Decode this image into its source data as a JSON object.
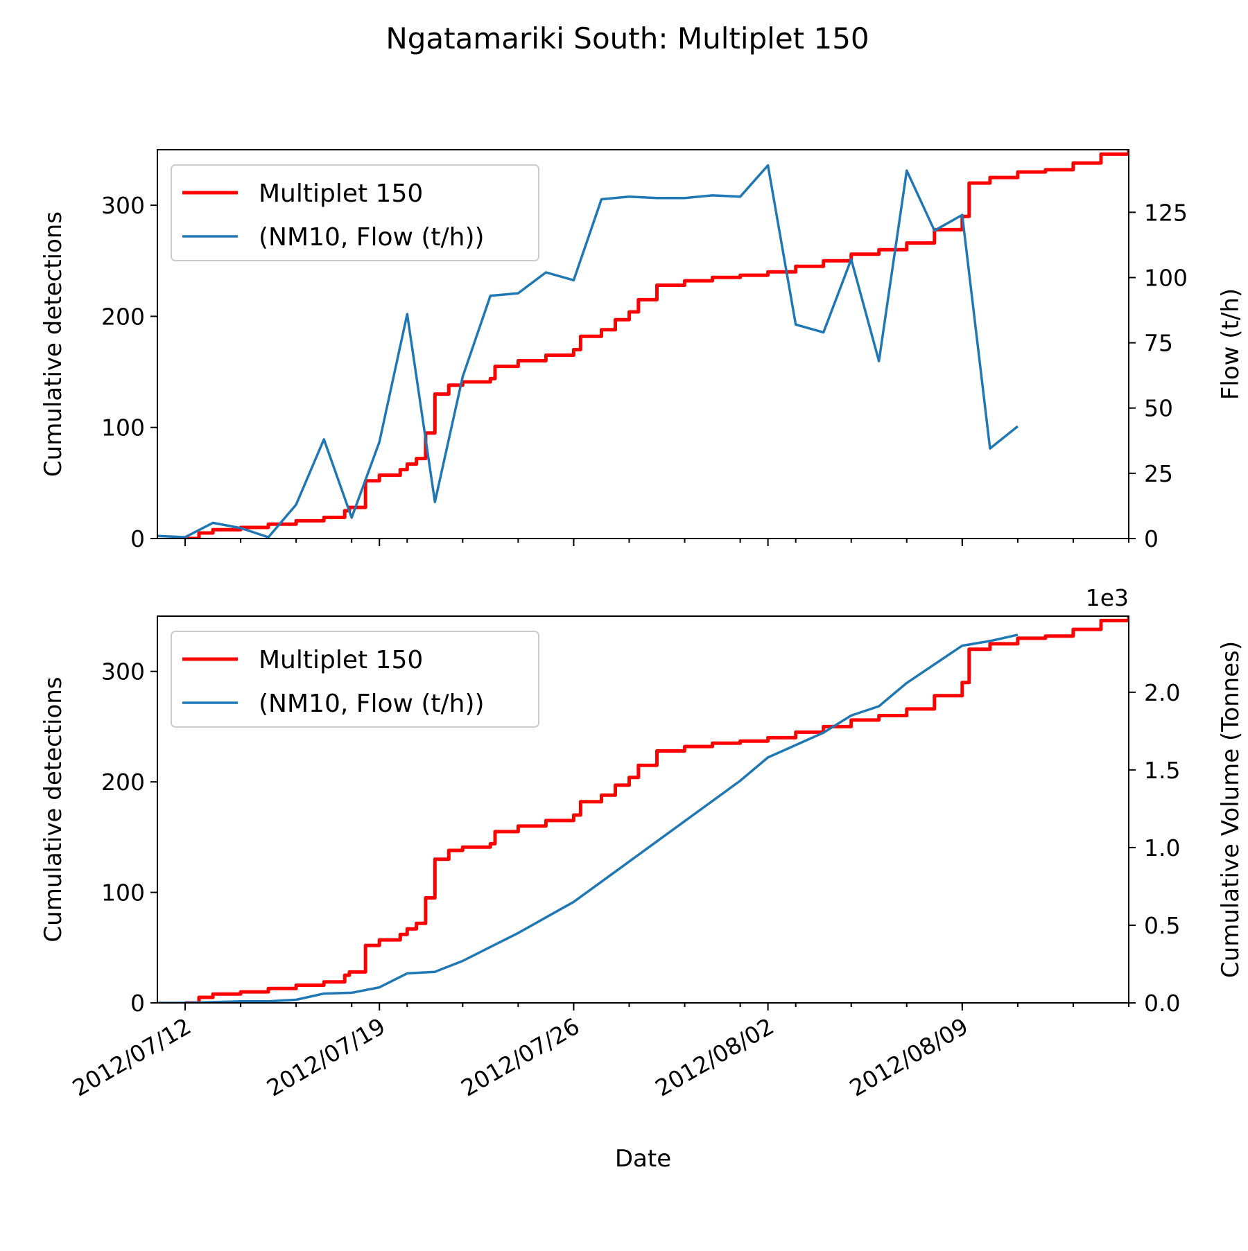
{
  "figure": {
    "title": "Ngatamariki South: Multiplet 150"
  },
  "colors": {
    "detections": "#ff0000",
    "flow": "#1f77b4",
    "axes": "#000000",
    "legend_border": "#cccccc"
  },
  "chart_data": [
    {
      "type": "line",
      "panel": "top",
      "x_axis": {
        "type": "date",
        "range": [
          "2012-07-11",
          "2012-08-15"
        ],
        "major_ticks": [
          "2012-07-12",
          "2012-07-19",
          "2012-07-26",
          "2012-08-02",
          "2012-08-09"
        ],
        "minor_tick_interval_days": 2,
        "tick_labels_shown": false
      },
      "left_axis": {
        "label": "Cumulative detections",
        "range": [
          0,
          350
        ],
        "ticks": [
          0,
          100,
          200,
          300
        ],
        "tick_labels": [
          "0",
          "100",
          "200",
          "300"
        ]
      },
      "right_axis": {
        "label": "Flow (t/h)",
        "range": [
          0,
          149
        ],
        "ticks": [
          0,
          25,
          50,
          75,
          100,
          125
        ],
        "tick_labels": [
          "0",
          "25",
          "50",
          "75",
          "100",
          "125"
        ]
      },
      "legend": {
        "placement": "upper-left",
        "entries": [
          "Multiplet 150",
          "(NM10, Flow (t/h))"
        ]
      },
      "grid": false,
      "series": [
        {
          "name": "Multiplet 150",
          "axis": "left",
          "style": "step",
          "x": [
            "2012-07-12",
            "2012-07-12T12:00",
            "2012-07-13",
            "2012-07-14",
            "2012-07-15",
            "2012-07-16",
            "2012-07-17",
            "2012-07-17T18:00",
            "2012-07-17T22:00",
            "2012-07-18T12:00",
            "2012-07-19",
            "2012-07-19T18:00",
            "2012-07-20",
            "2012-07-20T08:00",
            "2012-07-20T16:00",
            "2012-07-21",
            "2012-07-21T12:00",
            "2012-07-22",
            "2012-07-23",
            "2012-07-23T04:00",
            "2012-07-24",
            "2012-07-25",
            "2012-07-26",
            "2012-07-26T06:00",
            "2012-07-27",
            "2012-07-27T12:00",
            "2012-07-28",
            "2012-07-28T08:00",
            "2012-07-29",
            "2012-07-30",
            "2012-07-31",
            "2012-08-01",
            "2012-08-02",
            "2012-08-03",
            "2012-08-04",
            "2012-08-05",
            "2012-08-06",
            "2012-08-07",
            "2012-08-08",
            "2012-08-09",
            "2012-08-09T06:00",
            "2012-08-10",
            "2012-08-11",
            "2012-08-12",
            "2012-08-13",
            "2012-08-14",
            "2012-08-15"
          ],
          "y": [
            0,
            5,
            8,
            10,
            13,
            16,
            19,
            25,
            28,
            52,
            57,
            62,
            67,
            72,
            95,
            130,
            138,
            141,
            144,
            155,
            160,
            165,
            170,
            182,
            188,
            197,
            204,
            215,
            228,
            232,
            235,
            237,
            240,
            245,
            250,
            256,
            260,
            266,
            278,
            290,
            320,
            325,
            330,
            332,
            338,
            346,
            350
          ]
        },
        {
          "name": "(NM10, Flow (t/h))",
          "axis": "right",
          "style": "line",
          "x": [
            "2012-07-11",
            "2012-07-12",
            "2012-07-13",
            "2012-07-14",
            "2012-07-15",
            "2012-07-16",
            "2012-07-17",
            "2012-07-18",
            "2012-07-19",
            "2012-07-20",
            "2012-07-21",
            "2012-07-22",
            "2012-07-23",
            "2012-07-24",
            "2012-07-25",
            "2012-07-26",
            "2012-07-27",
            "2012-07-28",
            "2012-07-29",
            "2012-07-30",
            "2012-07-31",
            "2012-08-01",
            "2012-08-02",
            "2012-08-03",
            "2012-08-04",
            "2012-08-05",
            "2012-08-06",
            "2012-08-07",
            "2012-08-08",
            "2012-08-09",
            "2012-08-10",
            "2012-08-11"
          ],
          "y": [
            1,
            0.5,
            6,
            4,
            0.5,
            13,
            38,
            8,
            37,
            86,
            14,
            62,
            93,
            94,
            102,
            99,
            130,
            131,
            130.5,
            130.5,
            131.5,
            131,
            143,
            82,
            79,
            107,
            68,
            141,
            118,
            124,
            34.5,
            43
          ]
        }
      ]
    },
    {
      "type": "line",
      "panel": "bottom",
      "x_axis": {
        "label": "Date",
        "type": "date",
        "range": [
          "2012-07-11",
          "2012-08-15"
        ],
        "major_ticks": [
          "2012-07-12",
          "2012-07-19",
          "2012-07-26",
          "2012-08-02",
          "2012-08-09"
        ],
        "tick_labels": [
          "2012/07/12",
          "2012/07/19",
          "2012/07/26",
          "2012/08/02",
          "2012/08/09"
        ],
        "tick_label_rotation": "30 degrees"
      },
      "left_axis": {
        "label": "Cumulative detections",
        "range": [
          0,
          350
        ],
        "ticks": [
          0,
          100,
          200,
          300
        ],
        "tick_labels": [
          "0",
          "100",
          "200",
          "300"
        ]
      },
      "right_axis": {
        "label": "Cumulative Volume (Tonnes)",
        "scale_note": "1e3",
        "range": [
          0,
          2.49
        ],
        "ticks": [
          0,
          0.5,
          1.0,
          1.5,
          2.0
        ],
        "tick_labels": [
          "0.0",
          "0.5",
          "1.0",
          "1.5",
          "2.0"
        ]
      },
      "legend": {
        "placement": "upper-left",
        "entries": [
          "Multiplet 150",
          "(NM10, Flow (t/h))"
        ]
      },
      "grid": false,
      "series": [
        {
          "name": "Multiplet 150",
          "axis": "left",
          "style": "step",
          "x": [
            "2012-07-12",
            "2012-07-12T12:00",
            "2012-07-13",
            "2012-07-14",
            "2012-07-15",
            "2012-07-16",
            "2012-07-17",
            "2012-07-17T18:00",
            "2012-07-17T22:00",
            "2012-07-18T12:00",
            "2012-07-19",
            "2012-07-19T18:00",
            "2012-07-20",
            "2012-07-20T08:00",
            "2012-07-20T16:00",
            "2012-07-21",
            "2012-07-21T12:00",
            "2012-07-22",
            "2012-07-23",
            "2012-07-23T04:00",
            "2012-07-24",
            "2012-07-25",
            "2012-07-26",
            "2012-07-26T06:00",
            "2012-07-27",
            "2012-07-27T12:00",
            "2012-07-28",
            "2012-07-28T08:00",
            "2012-07-29",
            "2012-07-30",
            "2012-07-31",
            "2012-08-01",
            "2012-08-02",
            "2012-08-03",
            "2012-08-04",
            "2012-08-05",
            "2012-08-06",
            "2012-08-07",
            "2012-08-08",
            "2012-08-09",
            "2012-08-09T06:00",
            "2012-08-10",
            "2012-08-11",
            "2012-08-12",
            "2012-08-13",
            "2012-08-14",
            "2012-08-15"
          ],
          "y": [
            0,
            5,
            8,
            10,
            13,
            16,
            19,
            25,
            28,
            52,
            57,
            62,
            67,
            72,
            95,
            130,
            138,
            141,
            144,
            155,
            160,
            165,
            170,
            182,
            188,
            197,
            204,
            215,
            228,
            232,
            235,
            237,
            240,
            245,
            250,
            256,
            260,
            266,
            278,
            290,
            320,
            325,
            330,
            332,
            338,
            346,
            350
          ]
        },
        {
          "name": "(NM10, Flow (t/h))",
          "axis": "right",
          "style": "line",
          "x": [
            "2012-07-11",
            "2012-07-12",
            "2012-07-13",
            "2012-07-14",
            "2012-07-15",
            "2012-07-16",
            "2012-07-17",
            "2012-07-18",
            "2012-07-19",
            "2012-07-20",
            "2012-07-21",
            "2012-07-22",
            "2012-07-23",
            "2012-07-24",
            "2012-07-25",
            "2012-07-26",
            "2012-07-27",
            "2012-07-28",
            "2012-07-29",
            "2012-07-30",
            "2012-07-31",
            "2012-08-01",
            "2012-08-02",
            "2012-08-03",
            "2012-08-04",
            "2012-08-05",
            "2012-08-06",
            "2012-08-07",
            "2012-08-08",
            "2012-08-09",
            "2012-08-10",
            "2012-08-11"
          ],
          "y": [
            0,
            0,
            0.005,
            0.01,
            0.01,
            0.02,
            0.06,
            0.065,
            0.1,
            0.19,
            0.2,
            0.27,
            0.36,
            0.45,
            0.55,
            0.65,
            0.78,
            0.91,
            1.04,
            1.17,
            1.3,
            1.43,
            1.58,
            1.66,
            1.74,
            1.85,
            1.91,
            2.06,
            2.18,
            2.3,
            2.33,
            2.37
          ]
        }
      ]
    }
  ]
}
